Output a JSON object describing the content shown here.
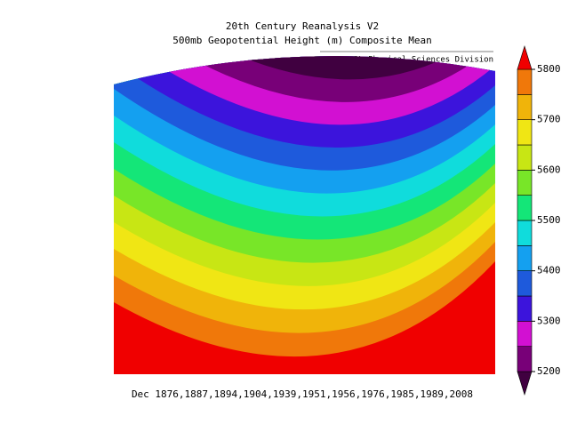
{
  "header": {
    "title": "20th Century Reanalysis V2",
    "subtitle": "500mb Geopotential Height (m) Composite Mean",
    "credit": "NOAA/ESRL Physical Sciences Division"
  },
  "footer": "Dec 1876,1887,1894,1904,1939,1951,1956,1976,1985,1989,2008",
  "colorbar": {
    "ticks": [
      5200,
      5300,
      5400,
      5500,
      5600,
      5700,
      5800
    ],
    "lim": [
      5200,
      5800
    ],
    "colors": [
      "#400040",
      "#780078",
      "#d210d2",
      "#3c14dc",
      "#1e5adc",
      "#14a0f0",
      "#10dcdc",
      "#14e678",
      "#78e628",
      "#c8e614",
      "#f0e614",
      "#f0b40a",
      "#f0780a",
      "#f00000"
    ]
  }
}
